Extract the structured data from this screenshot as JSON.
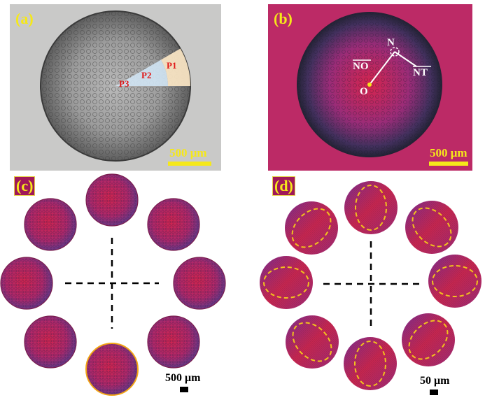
{
  "panels": {
    "a": {
      "label": "(a)",
      "scale": "500 μm",
      "regions": [
        "P1",
        "P2",
        "P3"
      ]
    },
    "b": {
      "label": "(b)",
      "scale": "500 μm",
      "points": [
        "N",
        "O"
      ],
      "vectors": [
        "NO",
        "NT"
      ]
    },
    "c": {
      "label": "(c)",
      "scale": "500 μm"
    },
    "d": {
      "label": "(d)",
      "scale": "50 μm"
    }
  },
  "colors": {
    "magenta": "#bf2a66",
    "purple": "#6a1f8a",
    "highlight_yellow": "#f5e81a",
    "dashed_outline": "#f2c21d",
    "region_p1": "#fbe6c4",
    "region_p2": "#cfe3f2",
    "label_red": "#e01818"
  }
}
